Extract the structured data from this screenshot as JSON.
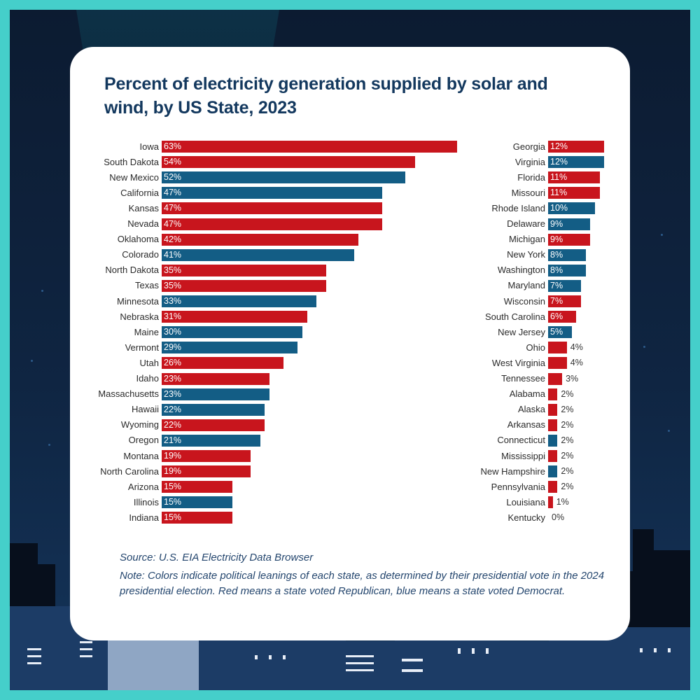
{
  "colors": {
    "republican": "#c8151d",
    "democrat": "#135d85",
    "frame": "#45cfca",
    "title": "#13385e",
    "notes": "#24466e"
  },
  "chart_data": {
    "type": "bar",
    "orientation": "horizontal",
    "title": "Percent of electricity generation supplied by solar and wind, by US State, 2023",
    "xlabel": "",
    "ylabel": "",
    "unit": "%",
    "xlim": [
      0,
      63
    ],
    "grid": false,
    "legend": "none",
    "columns": [
      {
        "categories": [
          "Iowa",
          "South Dakota",
          "New Mexico",
          "California",
          "Kansas",
          "Nevada",
          "Oklahoma",
          "Colorado",
          "North Dakota",
          "Texas",
          "Minnesota",
          "Nebraska",
          "Maine",
          "Vermont",
          "Utah",
          "Idaho",
          "Massachusetts",
          "Hawaii",
          "Wyoming",
          "Oregon",
          "Montana",
          "North Carolina",
          "Arizona",
          "Illinois",
          "Indiana"
        ],
        "values": [
          63,
          54,
          52,
          47,
          47,
          47,
          42,
          41,
          35,
          35,
          33,
          31,
          30,
          29,
          26,
          23,
          23,
          22,
          22,
          21,
          19,
          19,
          15,
          15,
          15
        ],
        "party": [
          "R",
          "R",
          "D",
          "D",
          "R",
          "R",
          "R",
          "D",
          "R",
          "R",
          "D",
          "R",
          "D",
          "D",
          "R",
          "R",
          "D",
          "D",
          "R",
          "D",
          "R",
          "R",
          "R",
          "D",
          "R"
        ]
      },
      {
        "categories": [
          "Georgia",
          "Virginia",
          "Florida",
          "Missouri",
          "Rhode Island",
          "Delaware",
          "Michigan",
          "New York",
          "Washington",
          "Maryland",
          "Wisconsin",
          "South Carolina",
          "New Jersey",
          "Ohio",
          "West Virginia",
          "Tennessee",
          "Alabama",
          "Alaska",
          "Arkansas",
          "Connecticut",
          "Mississippi",
          "New Hampshire",
          "Pennsylvania",
          "Louisiana",
          "Kentucky"
        ],
        "values": [
          12,
          12,
          11,
          11,
          10,
          9,
          9,
          8,
          8,
          7,
          7,
          6,
          5,
          4,
          4,
          3,
          2,
          2,
          2,
          2,
          2,
          2,
          2,
          1,
          0
        ],
        "party": [
          "R",
          "D",
          "R",
          "R",
          "D",
          "D",
          "R",
          "D",
          "D",
          "D",
          "R",
          "R",
          "D",
          "R",
          "R",
          "R",
          "R",
          "R",
          "R",
          "D",
          "R",
          "D",
          "R",
          "R",
          "R"
        ]
      }
    ]
  },
  "source": "Source: U.S. EIA Electricity Data Browser",
  "note": "Note: Colors indicate political leanings of each state, as determined by their presidential vote in the 2024 presidential election. Red means a state voted Republican, blue means a state voted Democrat."
}
